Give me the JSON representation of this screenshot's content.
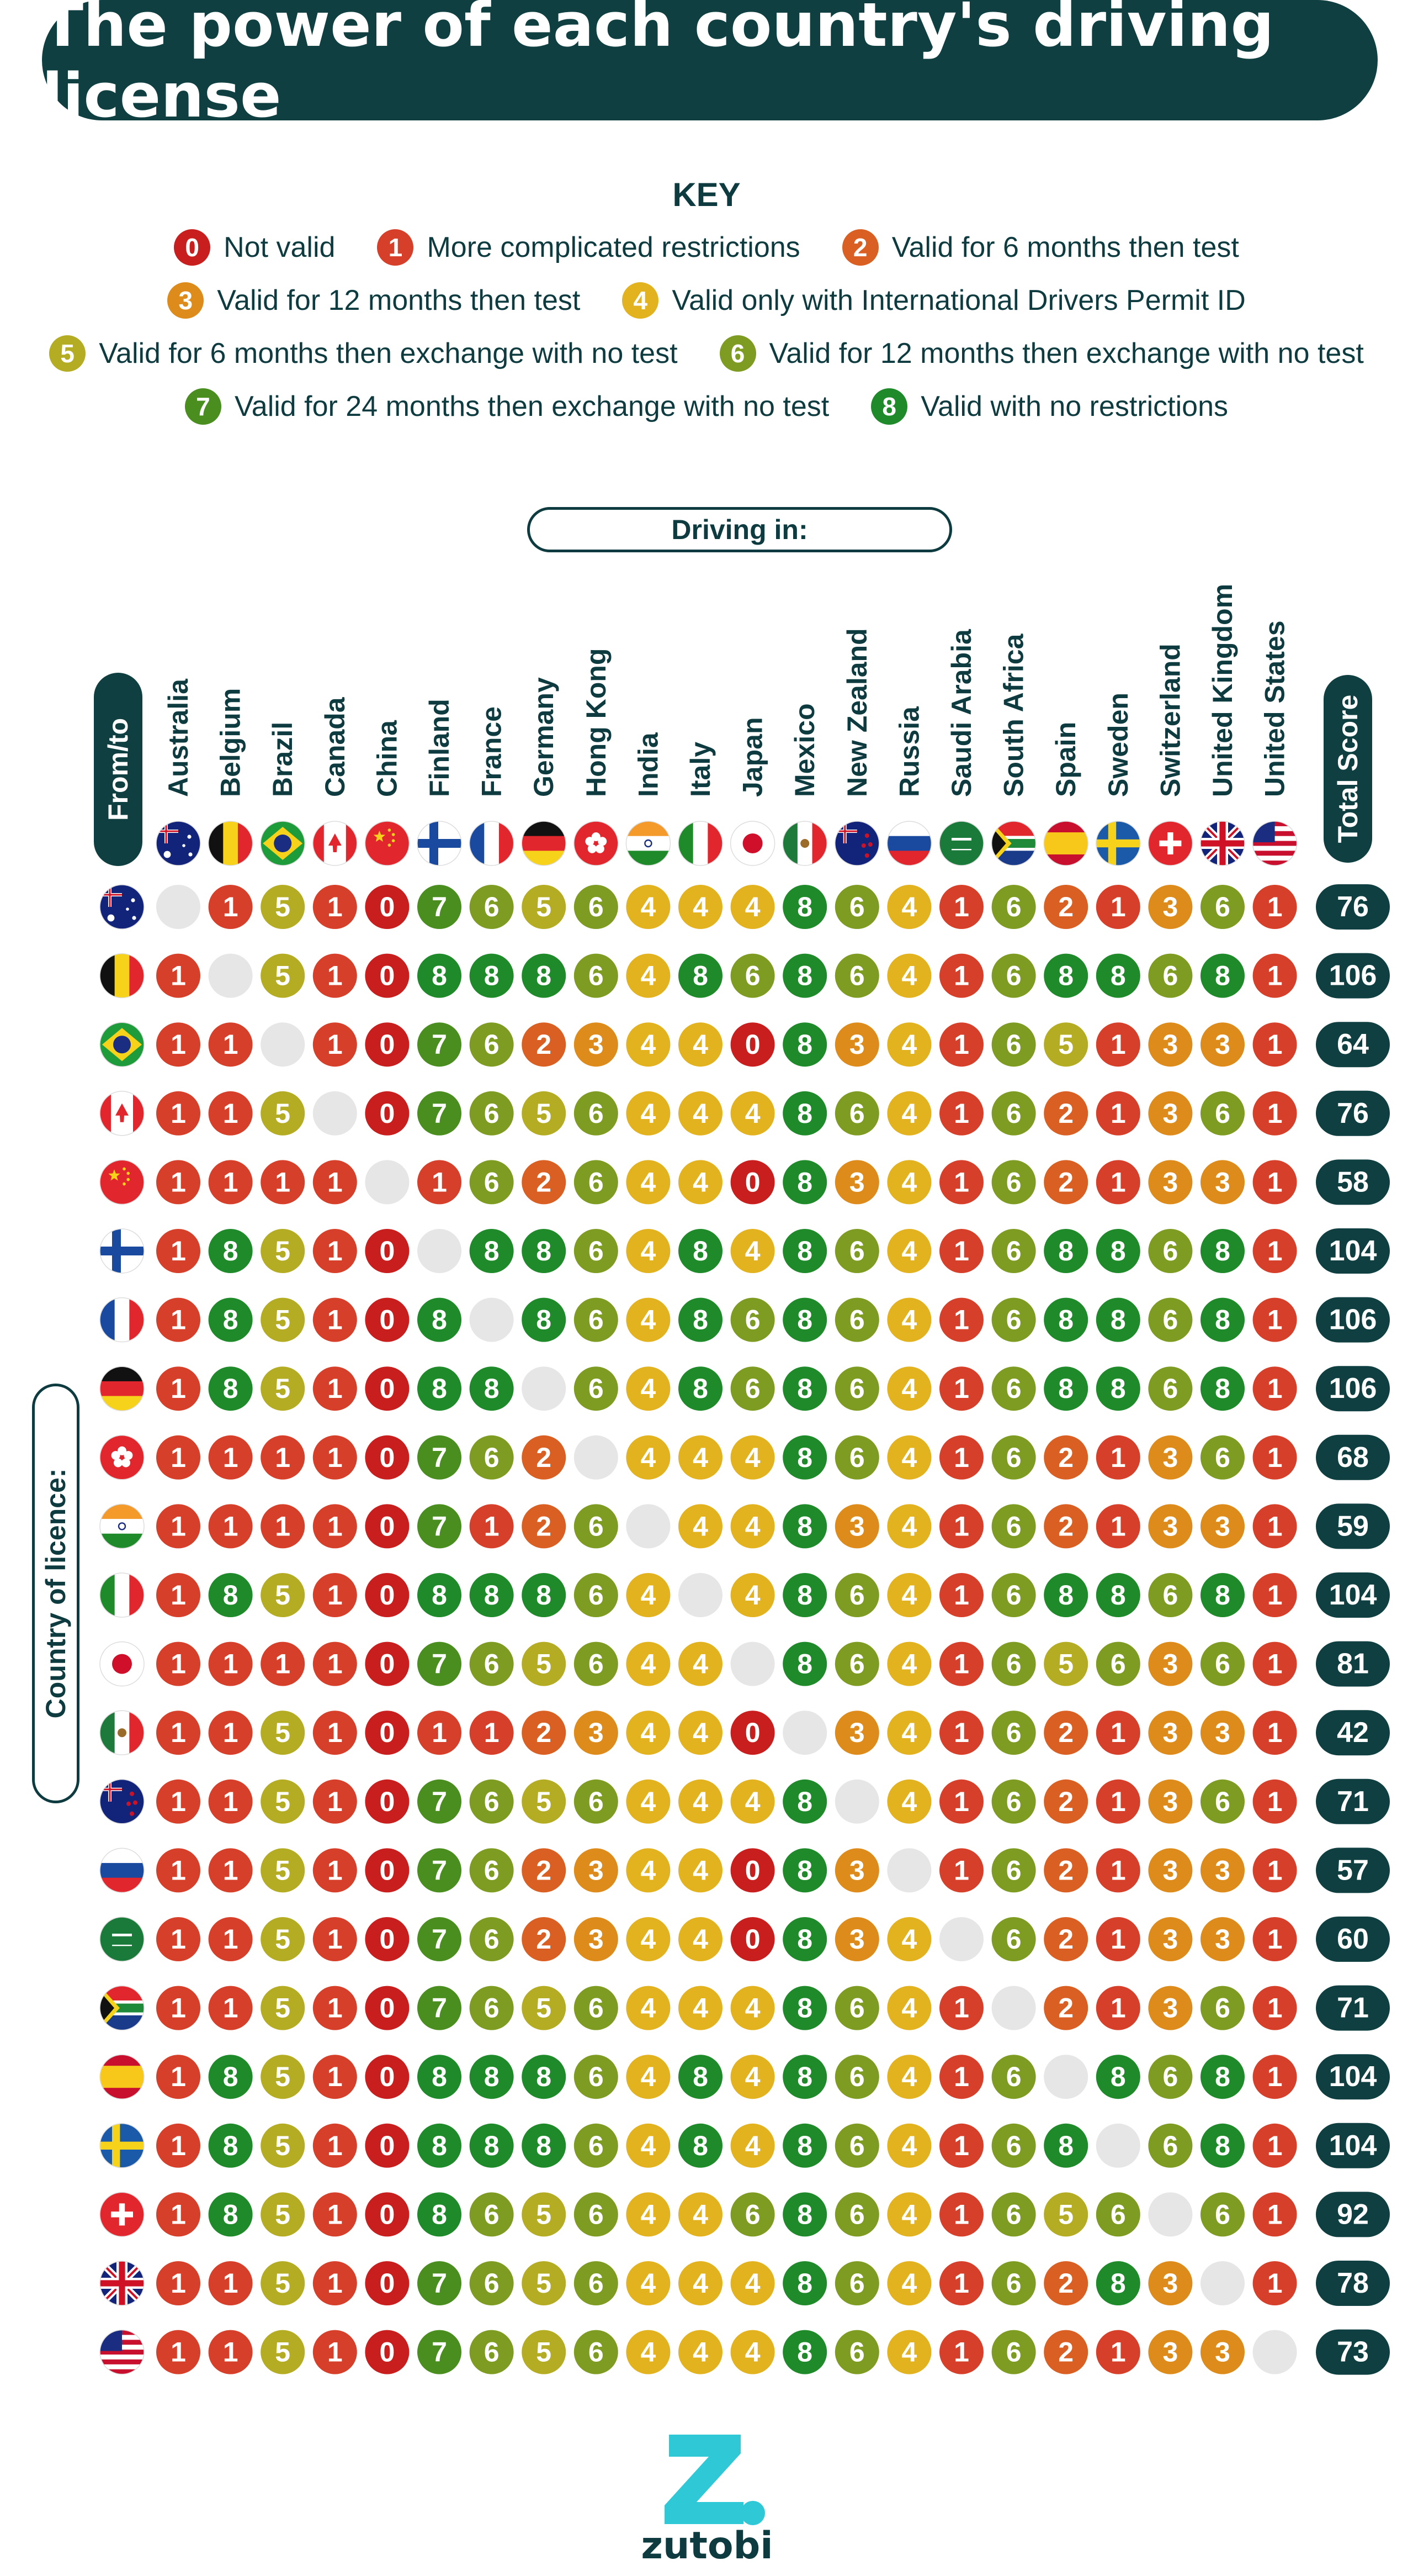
{
  "title": "The power of each country's driving license",
  "key": {
    "heading": "KEY",
    "rows": [
      [
        {
          "n": "0",
          "label": "Not valid"
        },
        {
          "n": "1",
          "label": "More complicated restrictions"
        },
        {
          "n": "2",
          "label": "Valid for 6 months then test"
        }
      ],
      [
        {
          "n": "3",
          "label": "Valid for 12 months then test"
        },
        {
          "n": "4",
          "label": "Valid only with International Drivers Permit ID"
        }
      ],
      [
        {
          "n": "5",
          "label": "Valid for 6 months then exchange with no test"
        },
        {
          "n": "6",
          "label": "Valid for 12 months then exchange with no test"
        }
      ],
      [
        {
          "n": "7",
          "label": "Valid for 24 months then exchange with no test"
        },
        {
          "n": "8",
          "label": "Valid with no restrictions"
        }
      ]
    ]
  },
  "colors": {
    "0": "#c81e1e",
    "1": "#d6402a",
    "2": "#d95f22",
    "3": "#dd8c1c",
    "4": "#e2b21f",
    "5": "#b4ac22",
    "6": "#7e9c22",
    "7": "#4b8e20",
    "8": "#1e8a2a",
    "empty": "#e6e6e6",
    "total": "#0f3f40",
    "dark": "#0e3b3f"
  },
  "labels": {
    "driving_in": "Driving in:",
    "from_to": "From/to",
    "total_score": "Total Score",
    "country_of_licence": "Country of licence:"
  },
  "brand": "zutobi",
  "chart_data": {
    "type": "heatmap",
    "title": "The power of each country's driving license",
    "xlabel": "Driving in:",
    "ylabel": "Country of licence:",
    "columns": [
      "Australia",
      "Belgium",
      "Brazil",
      "Canada",
      "China",
      "Finland",
      "France",
      "Germany",
      "Hong Kong",
      "India",
      "Italy",
      "Japan",
      "Mexico",
      "New Zealand",
      "Russia",
      "Saudi Arabia",
      "South Africa",
      "Spain",
      "Sweden",
      "Switzerland",
      "United Kingdom",
      "United States"
    ],
    "rows": [
      "Australia",
      "Belgium",
      "Brazil",
      "Canada",
      "China",
      "Finland",
      "France",
      "Germany",
      "Hong Kong",
      "India",
      "Italy",
      "Japan",
      "Mexico",
      "New Zealand",
      "Russia",
      "Saudi Arabia",
      "South Africa",
      "Spain",
      "Sweden",
      "Switzerland",
      "United Kingdom",
      "United States"
    ],
    "values": [
      [
        null,
        1,
        5,
        1,
        0,
        7,
        6,
        5,
        6,
        4,
        4,
        4,
        8,
        6,
        4,
        1,
        6,
        2,
        1,
        3,
        6,
        1
      ],
      [
        1,
        null,
        5,
        1,
        0,
        8,
        8,
        8,
        6,
        4,
        8,
        6,
        8,
        6,
        4,
        1,
        6,
        8,
        8,
        6,
        8,
        1
      ],
      [
        1,
        1,
        null,
        1,
        0,
        7,
        6,
        2,
        3,
        4,
        4,
        0,
        8,
        3,
        4,
        1,
        6,
        5,
        1,
        3,
        3,
        1
      ],
      [
        1,
        1,
        5,
        null,
        0,
        7,
        6,
        5,
        6,
        4,
        4,
        4,
        8,
        6,
        4,
        1,
        6,
        2,
        1,
        3,
        6,
        1
      ],
      [
        1,
        1,
        1,
        1,
        null,
        1,
        6,
        2,
        6,
        4,
        4,
        0,
        8,
        3,
        4,
        1,
        6,
        2,
        1,
        3,
        3,
        1
      ],
      [
        1,
        8,
        5,
        1,
        0,
        null,
        8,
        8,
        6,
        4,
        8,
        4,
        8,
        6,
        4,
        1,
        6,
        8,
        8,
        6,
        8,
        1
      ],
      [
        1,
        8,
        5,
        1,
        0,
        8,
        null,
        8,
        6,
        4,
        8,
        6,
        8,
        6,
        4,
        1,
        6,
        8,
        8,
        6,
        8,
        1
      ],
      [
        1,
        8,
        5,
        1,
        0,
        8,
        8,
        null,
        6,
        4,
        8,
        6,
        8,
        6,
        4,
        1,
        6,
        8,
        8,
        6,
        8,
        1
      ],
      [
        1,
        1,
        1,
        1,
        0,
        7,
        6,
        2,
        null,
        4,
        4,
        4,
        8,
        6,
        4,
        1,
        6,
        2,
        1,
        3,
        6,
        1
      ],
      [
        1,
        1,
        1,
        1,
        0,
        7,
        1,
        2,
        6,
        null,
        4,
        4,
        8,
        3,
        4,
        1,
        6,
        2,
        1,
        3,
        3,
        1
      ],
      [
        1,
        8,
        5,
        1,
        0,
        8,
        8,
        8,
        6,
        4,
        null,
        4,
        8,
        6,
        4,
        1,
        6,
        8,
        8,
        6,
        8,
        1
      ],
      [
        1,
        1,
        1,
        1,
        0,
        7,
        6,
        5,
        6,
        4,
        4,
        null,
        8,
        6,
        4,
        1,
        6,
        5,
        6,
        3,
        6,
        1
      ],
      [
        1,
        1,
        5,
        1,
        0,
        1,
        1,
        2,
        3,
        4,
        4,
        0,
        null,
        3,
        4,
        1,
        6,
        2,
        1,
        3,
        3,
        1
      ],
      [
        1,
        1,
        5,
        1,
        0,
        7,
        6,
        5,
        6,
        4,
        4,
        4,
        8,
        null,
        4,
        1,
        6,
        2,
        1,
        3,
        6,
        1
      ],
      [
        1,
        1,
        5,
        1,
        0,
        7,
        6,
        2,
        3,
        4,
        4,
        0,
        8,
        3,
        null,
        1,
        6,
        2,
        1,
        3,
        3,
        1
      ],
      [
        1,
        1,
        5,
        1,
        0,
        7,
        6,
        2,
        3,
        4,
        4,
        0,
        8,
        3,
        4,
        null,
        6,
        2,
        1,
        3,
        3,
        1
      ],
      [
        1,
        1,
        5,
        1,
        0,
        7,
        6,
        5,
        6,
        4,
        4,
        4,
        8,
        6,
        4,
        1,
        null,
        2,
        1,
        3,
        6,
        1
      ],
      [
        1,
        8,
        5,
        1,
        0,
        8,
        8,
        8,
        6,
        4,
        8,
        4,
        8,
        6,
        4,
        1,
        6,
        null,
        8,
        6,
        8,
        1
      ],
      [
        1,
        8,
        5,
        1,
        0,
        8,
        8,
        8,
        6,
        4,
        8,
        4,
        8,
        6,
        4,
        1,
        6,
        8,
        null,
        6,
        8,
        1
      ],
      [
        1,
        8,
        5,
        1,
        0,
        8,
        6,
        5,
        6,
        4,
        4,
        6,
        8,
        6,
        4,
        1,
        6,
        5,
        6,
        null,
        6,
        1
      ],
      [
        1,
        1,
        5,
        1,
        0,
        7,
        6,
        5,
        6,
        4,
        4,
        4,
        8,
        6,
        4,
        1,
        6,
        2,
        8,
        3,
        null,
        1
      ],
      [
        1,
        1,
        5,
        1,
        0,
        7,
        6,
        5,
        6,
        4,
        4,
        4,
        8,
        6,
        4,
        1,
        6,
        2,
        1,
        3,
        3,
        null
      ]
    ],
    "total_score": [
      76,
      106,
      64,
      76,
      58,
      104,
      106,
      106,
      68,
      59,
      104,
      81,
      42,
      71,
      57,
      60,
      71,
      104,
      104,
      92,
      78,
      73
    ]
  }
}
